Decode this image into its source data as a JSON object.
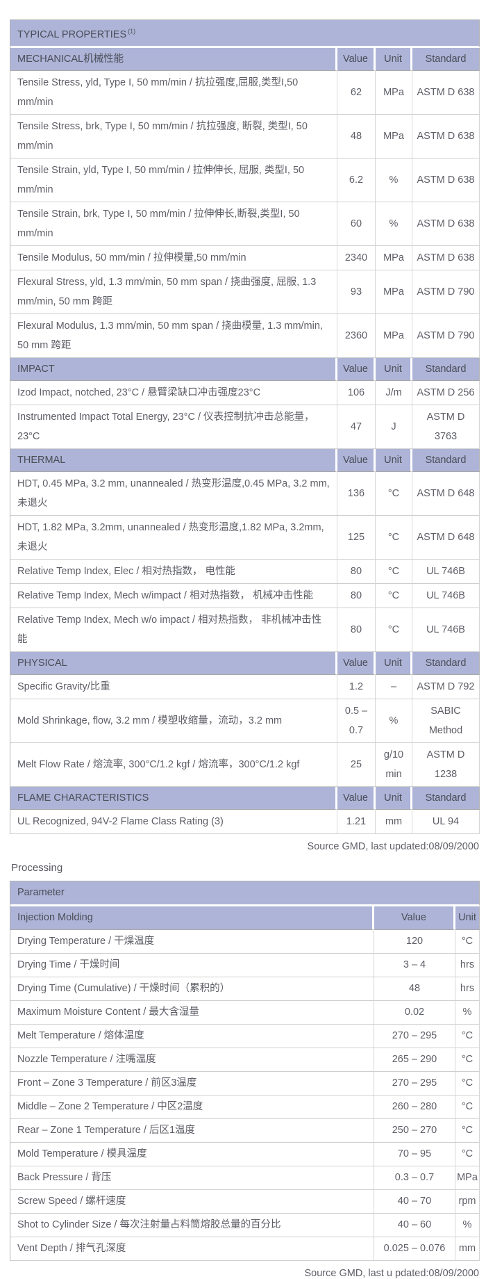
{
  "colors": {
    "header_band": "#adb4d7"
  },
  "typical_properties": {
    "title": "TYPICAL PROPERTIES",
    "title_sup": "(1)",
    "columns": [
      "Value",
      "Unit",
      "Standard"
    ],
    "sections": [
      {
        "name": "MECHANICAL机械性能",
        "rows": [
          {
            "property": "Tensile Stress, yld, Type I, 50 mm/min / 抗拉强度,屈服,类型I,50 mm/min",
            "value": "62",
            "unit": "MPa",
            "standard": "ASTM D 638"
          },
          {
            "property": "Tensile Stress, brk, Type I, 50 mm/min / 抗拉强度, 断裂, 类型I, 50 mm/min",
            "value": "48",
            "unit": "MPa",
            "standard": "ASTM D 638"
          },
          {
            "property": "Tensile Strain, yld, Type I, 50 mm/min / 拉伸伸长, 屈服, 类型I, 50 mm/min",
            "value": "6.2",
            "unit": "%",
            "standard": "ASTM D 638"
          },
          {
            "property": "Tensile Strain, brk, Type I, 50 mm/min / 拉伸伸长,断裂,类型I, 50 mm/min",
            "value": "60",
            "unit": "%",
            "standard": "ASTM D 638"
          },
          {
            "property": "Tensile Modulus, 50 mm/min / 拉伸模量,50 mm/min",
            "value": "2340",
            "unit": "MPa",
            "standard": "ASTM D 638"
          },
          {
            "property": "Flexural Stress, yld, 1.3 mm/min, 50 mm span / 挠曲强度, 屈服, 1.3 mm/min, 50 mm 跨距",
            "value": "93",
            "unit": "MPa",
            "standard": "ASTM D 790"
          },
          {
            "property": "Flexural Modulus, 1.3 mm/min, 50 mm span / 挠曲模量, 1.3 mm/min, 50 mm 跨距",
            "value": "2360",
            "unit": "MPa",
            "standard": "ASTM D 790"
          }
        ]
      },
      {
        "name": "IMPACT",
        "rows": [
          {
            "property": "Izod Impact, notched, 23°C / 悬臂梁缺口冲击强度23°C",
            "value": "106",
            "unit": "J/m",
            "standard": "ASTM D 256"
          },
          {
            "property": "Instrumented Impact Total Energy, 23°C / 仪表控制抗冲击总能量， 23°C",
            "value": "47",
            "unit": "J",
            "standard": "ASTM D 3763"
          }
        ]
      },
      {
        "name": "THERMAL",
        "rows": [
          {
            "property": "HDT, 0.45 MPa, 3.2 mm, unannealed / 热变形温度,0.45 MPa, 3.2 mm,未退火",
            "value": "136",
            "unit": "°C",
            "standard": "ASTM D 648"
          },
          {
            "property": "HDT, 1.82 MPa, 3.2mm, unannealed / 热变形温度,1.82 MPa, 3.2mm,未退火",
            "value": "125",
            "unit": "°C",
            "standard": "ASTM D 648"
          },
          {
            "property": "Relative Temp Index, Elec / 相对热指数， 电性能",
            "value": "80",
            "unit": "°C",
            "standard": "UL 746B"
          },
          {
            "property": "Relative Temp Index, Mech w/impact / 相对热指数， 机械冲击性能",
            "value": "80",
            "unit": "°C",
            "standard": "UL 746B"
          },
          {
            "property": "Relative Temp Index, Mech w/o impact / 相对热指数， 非机械冲击性能",
            "value": "80",
            "unit": "°C",
            "standard": "UL 746B"
          }
        ]
      },
      {
        "name": "PHYSICAL",
        "rows": [
          {
            "property": "Specific Gravity/比重",
            "value": "1.2",
            "unit": "–",
            "standard": "ASTM D 792"
          },
          {
            "property": "Mold Shrinkage, flow, 3.2 mm / 模塑收缩量，流动，3.2 mm",
            "value": "0.5 – 0.7",
            "unit": "%",
            "standard": "SABIC Method"
          },
          {
            "property": "Melt Flow Rate / 熔流率, 300°C/1.2 kgf / 熔流率，300°C/1.2 kgf",
            "value": "25",
            "unit": "g/10 min",
            "standard": "ASTM D 1238"
          }
        ]
      },
      {
        "name": "FLAME CHARACTERISTICS",
        "rows": [
          {
            "property": "UL Recognized, 94V-2 Flame Class Rating (3)",
            "value": "1.21",
            "unit": "mm",
            "standard": "UL 94"
          }
        ]
      }
    ],
    "source_note": "Source GMD, last updated:08/09/2000"
  },
  "processing": {
    "heading": "Processing",
    "parameter_header": "Parameter",
    "group_header": "Injection Molding",
    "columns": [
      "Value",
      "Unit"
    ],
    "rows": [
      {
        "parameter": "Drying Temperature / 干燥温度",
        "value": "120",
        "unit": "°C"
      },
      {
        "parameter": "Drying Time / 干燥时间",
        "value": "3 – 4",
        "unit": "hrs"
      },
      {
        "parameter": "Drying Time (Cumulative) / 干燥时间（累积的）",
        "value": "48",
        "unit": "hrs"
      },
      {
        "parameter": "Maximum Moisture Content / 最大含湿量",
        "value": "0.02",
        "unit": "%"
      },
      {
        "parameter": "Melt Temperature / 熔体温度",
        "value": "270 – 295",
        "unit": "°C"
      },
      {
        "parameter": "Nozzle Temperature / 注嘴温度",
        "value": "265 – 290",
        "unit": "°C"
      },
      {
        "parameter": "Front – Zone 3 Temperature / 前区3温度",
        "value": "270 – 295",
        "unit": "°C"
      },
      {
        "parameter": "Middle – Zone 2 Temperature / 中区2温度",
        "value": "260 – 280",
        "unit": "°C"
      },
      {
        "parameter": "Rear – Zone 1 Temperature / 后区1温度",
        "value": "250 – 270",
        "unit": "°C"
      },
      {
        "parameter": "Mold Temperature / 模具温度",
        "value": "70 – 95",
        "unit": "°C"
      },
      {
        "parameter": "Back Pressure / 背压",
        "value": "0.3 – 0.7",
        "unit": "MPa"
      },
      {
        "parameter": "Screw Speed / 螺杆速度",
        "value": "40 – 70",
        "unit": "rpm"
      },
      {
        "parameter": "Shot to Cylinder Size / 每次注射量占料筒熔胶总量的百分比",
        "value": "40 – 60",
        "unit": "%"
      },
      {
        "parameter": "Vent Depth / 排气孔深度",
        "value": "0.025 – 0.076",
        "unit": "mm"
      }
    ],
    "source_note": "Source GMD, last u pdated:08/09/2000"
  }
}
